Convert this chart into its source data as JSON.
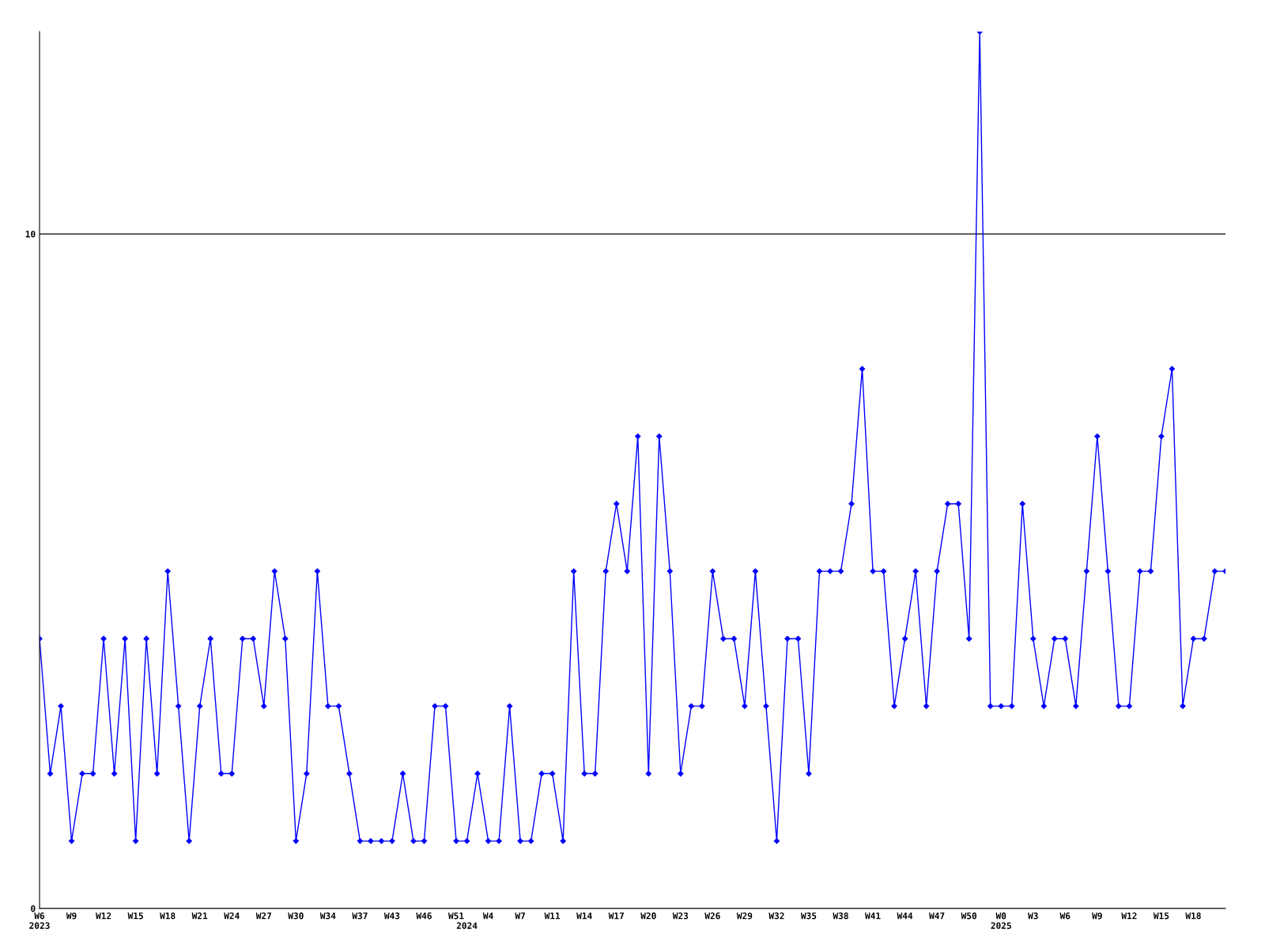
{
  "chart_data": {
    "type": "line",
    "categories": [
      "W6\n2023",
      null,
      null,
      "W9",
      null,
      null,
      "W12",
      null,
      null,
      "W15",
      null,
      null,
      "W18",
      null,
      null,
      "W21",
      null,
      null,
      "W24",
      null,
      null,
      "W27",
      null,
      null,
      "W30",
      null,
      null,
      "W34",
      null,
      null,
      "W37",
      null,
      null,
      "W43",
      null,
      null,
      "W46",
      null,
      null,
      "W51",
      "\n2024",
      null,
      "W4",
      null,
      null,
      "W7",
      null,
      null,
      "W11",
      null,
      null,
      "W14",
      null,
      null,
      "W17",
      null,
      null,
      "W20",
      null,
      null,
      "W23",
      null,
      null,
      "W26",
      null,
      null,
      "W29",
      null,
      null,
      "W32",
      null,
      null,
      "W35",
      null,
      null,
      "W38",
      null,
      null,
      "W41",
      null,
      null,
      "W44",
      null,
      null,
      "W47",
      null,
      null,
      "W50",
      null,
      null,
      "W0\n2025",
      null,
      null,
      "W3",
      null,
      null,
      "W6",
      null,
      null,
      "W9",
      null,
      null,
      "W12",
      null,
      null,
      "W15",
      null,
      null,
      "W18",
      null,
      null,
      null
    ],
    "series": [
      {
        "color": "#0000ff",
        "values": [
          4,
          2,
          3,
          1,
          2,
          2,
          4,
          2,
          4,
          1,
          4,
          2,
          5,
          3,
          1,
          3,
          4,
          2,
          2,
          4,
          4,
          3,
          5,
          4,
          1,
          2,
          5,
          3,
          3,
          2,
          1,
          1,
          1,
          1,
          2,
          1,
          1,
          3,
          3,
          1,
          1,
          2,
          1,
          1,
          3,
          1,
          1,
          2,
          2,
          1,
          5,
          2,
          2,
          5,
          6,
          5,
          7,
          2,
          7,
          5,
          2,
          3,
          3,
          5,
          4,
          4,
          3,
          5,
          3,
          1,
          4,
          4,
          2,
          5,
          5,
          5,
          6,
          8,
          5,
          5,
          3,
          4,
          5,
          3,
          5,
          6,
          6,
          4,
          13,
          3,
          3,
          3,
          6,
          4,
          3,
          4,
          4,
          3,
          5,
          7,
          5,
          3,
          3,
          5,
          5,
          7,
          8,
          3,
          4,
          4,
          5,
          5
        ]
      }
    ],
    "ylim": [
      0,
      13
    ],
    "yticks": [
      0,
      10
    ],
    "grid": "y",
    "marker": "diamond",
    "line_style": "solid"
  }
}
